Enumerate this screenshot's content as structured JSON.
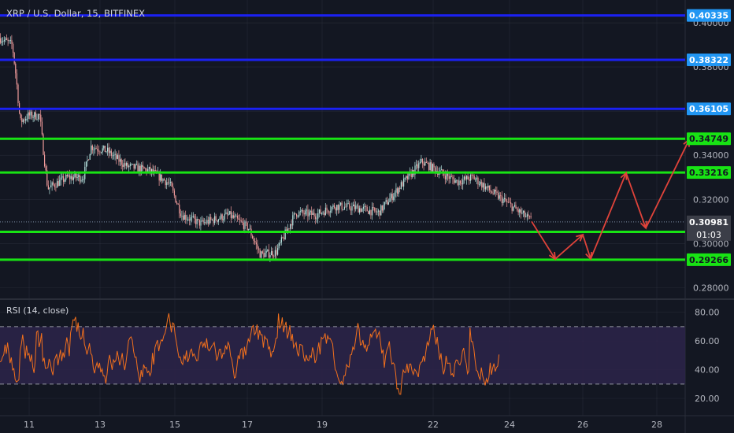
{
  "header": {
    "title": "XRP / U.S. Dollar, 15, BITFINEX"
  },
  "colors": {
    "background": "#131722",
    "grid": "#363a45",
    "text": "#b2b5be",
    "blue_line": "#1b21f2",
    "blue_tag": "#2196f3",
    "green_line": "#18e314",
    "arrow": "#e0433a",
    "rsi_line": "#f2701d",
    "rsi_band": "#2b2348",
    "up_candle": "#b2dfdb",
    "down_candle": "#ef9a9a",
    "price_tag": "#3b3e48"
  },
  "price_axis": {
    "ticks": [
      "0.40000",
      "0.38000",
      "0.36000",
      "0.34000",
      "0.32000",
      "0.30000",
      "0.28000"
    ],
    "tick_values": [
      0.4,
      0.38,
      0.36,
      0.34,
      0.32,
      0.3,
      0.28
    ]
  },
  "levels": {
    "blue": [
      {
        "value": 0.40335,
        "label": "0.40335"
      },
      {
        "value": 0.38322,
        "label": "0.38322"
      },
      {
        "value": 0.36105,
        "label": "0.36105"
      }
    ],
    "green": [
      {
        "value": 0.34749,
        "label": "0.34749"
      },
      {
        "value": 0.33216,
        "label": "0.33216"
      },
      {
        "value": 0.30527,
        "label": "0.30527"
      },
      {
        "value": 0.29266,
        "label": "0.29266"
      }
    ]
  },
  "current_price": {
    "value": 0.30981,
    "label": "0.30981",
    "countdown": "01:03"
  },
  "time_axis": {
    "ticks": [
      "11",
      "13",
      "15",
      "17",
      "19",
      "22",
      "24",
      "26",
      "28"
    ]
  },
  "rsi": {
    "label": "RSI (14, close)",
    "ticks": [
      "80.00",
      "60.00",
      "40.00",
      "20.00"
    ],
    "tick_values": [
      80,
      60,
      40,
      20
    ],
    "upper_band": 70,
    "lower_band": 30,
    "range": [
      8,
      88
    ]
  },
  "chart_data": [
    {
      "type": "candlestick",
      "title": "XRP / U.S. Dollar, 15, BITFINEX",
      "ylim": [
        0.2755,
        0.4075
      ],
      "x_ticks": [
        "11",
        "13",
        "15",
        "17",
        "19",
        "22",
        "24",
        "26",
        "28"
      ],
      "price_path": [
        [
          0.0,
          0.393
        ],
        [
          0.015,
          0.39
        ],
        [
          0.02,
          0.375
        ],
        [
          0.025,
          0.355
        ],
        [
          0.035,
          0.358
        ],
        [
          0.05,
          0.358
        ],
        [
          0.055,
          0.34
        ],
        [
          0.06,
          0.325
        ],
        [
          0.085,
          0.33
        ],
        [
          0.105,
          0.33
        ],
        [
          0.115,
          0.344
        ],
        [
          0.135,
          0.342
        ],
        [
          0.16,
          0.335
        ],
        [
          0.19,
          0.333
        ],
        [
          0.215,
          0.327
        ],
        [
          0.23,
          0.313
        ],
        [
          0.255,
          0.309
        ],
        [
          0.29,
          0.313
        ],
        [
          0.315,
          0.307
        ],
        [
          0.33,
          0.295
        ],
        [
          0.35,
          0.296
        ],
        [
          0.375,
          0.314
        ],
        [
          0.4,
          0.313
        ],
        [
          0.425,
          0.317
        ],
        [
          0.455,
          0.316
        ],
        [
          0.48,
          0.314
        ],
        [
          0.51,
          0.327
        ],
        [
          0.535,
          0.337
        ],
        [
          0.555,
          0.333
        ],
        [
          0.58,
          0.328
        ],
        [
          0.6,
          0.33
        ],
        [
          0.625,
          0.323
        ],
        [
          0.645,
          0.318
        ],
        [
          0.675,
          0.31
        ]
      ],
      "forecast_path": [
        [
          0.675,
          0.31
        ],
        [
          0.705,
          0.293
        ],
        [
          0.74,
          0.304
        ],
        [
          0.75,
          0.293
        ],
        [
          0.795,
          0.332
        ],
        [
          0.82,
          0.307
        ],
        [
          0.875,
          0.347
        ]
      ],
      "levels": [
        0.40335,
        0.38322,
        0.36105,
        0.34749,
        0.33216,
        0.30527,
        0.29266
      ],
      "last_price": 0.30981
    },
    {
      "type": "line",
      "title": "RSI (14, close)",
      "ylim": [
        8,
        88
      ],
      "y_ticks": [
        80,
        60,
        40,
        20
      ],
      "bands": [
        30,
        70
      ],
      "band_fill": [
        30,
        70
      ]
    }
  ]
}
